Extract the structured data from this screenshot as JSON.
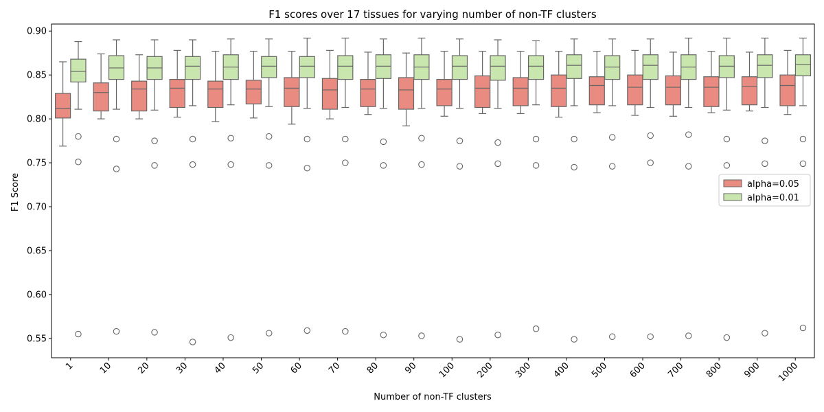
{
  "chart_data": {
    "type": "box",
    "title": "F1 scores over 17 tissues for varying number of non-TF clusters",
    "xlabel": "Number of non-TF clusters",
    "ylabel": "F1 Score",
    "ylim": [
      0.528,
      0.908
    ],
    "yticks": [
      "0.55",
      "0.60",
      "0.65",
      "0.70",
      "0.75",
      "0.80",
      "0.85",
      "0.90"
    ],
    "categories": [
      "1",
      "10",
      "20",
      "30",
      "40",
      "50",
      "60",
      "70",
      "80",
      "90",
      "100",
      "200",
      "300",
      "400",
      "500",
      "600",
      "700",
      "800",
      "900",
      "1000"
    ],
    "legend_position": "center-right",
    "grid": false,
    "series": [
      {
        "name": "alpha=0.05",
        "color": "#e98b80",
        "boxes": [
          {
            "whislo": 0.769,
            "q1": 0.801,
            "med": 0.812,
            "q3": 0.829,
            "whishi": 0.865,
            "fliers": []
          },
          {
            "whislo": 0.8,
            "q1": 0.809,
            "med": 0.83,
            "q3": 0.841,
            "whishi": 0.874,
            "fliers": []
          },
          {
            "whislo": 0.8,
            "q1": 0.809,
            "med": 0.834,
            "q3": 0.843,
            "whishi": 0.873,
            "fliers": []
          },
          {
            "whislo": 0.802,
            "q1": 0.813,
            "med": 0.835,
            "q3": 0.845,
            "whishi": 0.878,
            "fliers": []
          },
          {
            "whislo": 0.797,
            "q1": 0.813,
            "med": 0.834,
            "q3": 0.843,
            "whishi": 0.877,
            "fliers": []
          },
          {
            "whislo": 0.801,
            "q1": 0.817,
            "med": 0.834,
            "q3": 0.844,
            "whishi": 0.877,
            "fliers": []
          },
          {
            "whislo": 0.794,
            "q1": 0.814,
            "med": 0.835,
            "q3": 0.847,
            "whishi": 0.877,
            "fliers": []
          },
          {
            "whislo": 0.8,
            "q1": 0.811,
            "med": 0.833,
            "q3": 0.846,
            "whishi": 0.878,
            "fliers": []
          },
          {
            "whislo": 0.805,
            "q1": 0.814,
            "med": 0.834,
            "q3": 0.845,
            "whishi": 0.876,
            "fliers": []
          },
          {
            "whislo": 0.792,
            "q1": 0.811,
            "med": 0.833,
            "q3": 0.847,
            "whishi": 0.875,
            "fliers": []
          },
          {
            "whislo": 0.803,
            "q1": 0.815,
            "med": 0.834,
            "q3": 0.845,
            "whishi": 0.877,
            "fliers": []
          },
          {
            "whislo": 0.806,
            "q1": 0.813,
            "med": 0.835,
            "q3": 0.849,
            "whishi": 0.877,
            "fliers": []
          },
          {
            "whislo": 0.806,
            "q1": 0.815,
            "med": 0.835,
            "q3": 0.847,
            "whishi": 0.877,
            "fliers": []
          },
          {
            "whislo": 0.802,
            "q1": 0.814,
            "med": 0.835,
            "q3": 0.85,
            "whishi": 0.877,
            "fliers": []
          },
          {
            "whislo": 0.807,
            "q1": 0.816,
            "med": 0.838,
            "q3": 0.848,
            "whishi": 0.877,
            "fliers": []
          },
          {
            "whislo": 0.804,
            "q1": 0.816,
            "med": 0.836,
            "q3": 0.85,
            "whishi": 0.878,
            "fliers": []
          },
          {
            "whislo": 0.803,
            "q1": 0.816,
            "med": 0.836,
            "q3": 0.849,
            "whishi": 0.876,
            "fliers": []
          },
          {
            "whislo": 0.807,
            "q1": 0.814,
            "med": 0.836,
            "q3": 0.848,
            "whishi": 0.877,
            "fliers": []
          },
          {
            "whislo": 0.809,
            "q1": 0.816,
            "med": 0.837,
            "q3": 0.848,
            "whishi": 0.876,
            "fliers": []
          },
          {
            "whislo": 0.805,
            "q1": 0.815,
            "med": 0.838,
            "q3": 0.85,
            "whishi": 0.878,
            "fliers": []
          }
        ]
      },
      {
        "name": "alpha=0.01",
        "color": "#c9e6ae",
        "boxes": [
          {
            "whislo": 0.811,
            "q1": 0.842,
            "med": 0.854,
            "q3": 0.868,
            "whishi": 0.888,
            "fliers": [
              0.78,
              0.751,
              0.555
            ]
          },
          {
            "whislo": 0.811,
            "q1": 0.845,
            "med": 0.858,
            "q3": 0.872,
            "whishi": 0.89,
            "fliers": [
              0.777,
              0.743,
              0.558
            ]
          },
          {
            "whislo": 0.81,
            "q1": 0.845,
            "med": 0.858,
            "q3": 0.871,
            "whishi": 0.89,
            "fliers": [
              0.775,
              0.747,
              0.557
            ]
          },
          {
            "whislo": 0.815,
            "q1": 0.845,
            "med": 0.86,
            "q3": 0.871,
            "whishi": 0.89,
            "fliers": [
              0.777,
              0.748,
              0.546
            ]
          },
          {
            "whislo": 0.816,
            "q1": 0.845,
            "med": 0.859,
            "q3": 0.873,
            "whishi": 0.891,
            "fliers": [
              0.778,
              0.748,
              0.551
            ]
          },
          {
            "whislo": 0.814,
            "q1": 0.847,
            "med": 0.86,
            "q3": 0.871,
            "whishi": 0.891,
            "fliers": [
              0.78,
              0.747,
              0.556
            ]
          },
          {
            "whislo": 0.812,
            "q1": 0.847,
            "med": 0.86,
            "q3": 0.871,
            "whishi": 0.892,
            "fliers": [
              0.777,
              0.744,
              0.559
            ]
          },
          {
            "whislo": 0.813,
            "q1": 0.845,
            "med": 0.86,
            "q3": 0.872,
            "whishi": 0.892,
            "fliers": [
              0.777,
              0.75,
              0.558
            ]
          },
          {
            "whislo": 0.812,
            "q1": 0.846,
            "med": 0.86,
            "q3": 0.873,
            "whishi": 0.891,
            "fliers": [
              0.774,
              0.747,
              0.554
            ]
          },
          {
            "whislo": 0.812,
            "q1": 0.845,
            "med": 0.859,
            "q3": 0.873,
            "whishi": 0.892,
            "fliers": [
              0.778,
              0.748,
              0.553
            ]
          },
          {
            "whislo": 0.812,
            "q1": 0.845,
            "med": 0.86,
            "q3": 0.872,
            "whishi": 0.891,
            "fliers": [
              0.775,
              0.746,
              0.549
            ]
          },
          {
            "whislo": 0.812,
            "q1": 0.844,
            "med": 0.86,
            "q3": 0.872,
            "whishi": 0.89,
            "fliers": [
              0.773,
              0.749,
              0.554
            ]
          },
          {
            "whislo": 0.816,
            "q1": 0.845,
            "med": 0.86,
            "q3": 0.872,
            "whishi": 0.889,
            "fliers": [
              0.777,
              0.747,
              0.561
            ]
          },
          {
            "whislo": 0.815,
            "q1": 0.846,
            "med": 0.861,
            "q3": 0.873,
            "whishi": 0.891,
            "fliers": [
              0.777,
              0.745,
              0.549
            ]
          },
          {
            "whislo": 0.815,
            "q1": 0.845,
            "med": 0.859,
            "q3": 0.872,
            "whishi": 0.891,
            "fliers": [
              0.779,
              0.746,
              0.552
            ]
          },
          {
            "whislo": 0.813,
            "q1": 0.845,
            "med": 0.861,
            "q3": 0.873,
            "whishi": 0.891,
            "fliers": [
              0.781,
              0.75,
              0.552
            ]
          },
          {
            "whislo": 0.813,
            "q1": 0.845,
            "med": 0.859,
            "q3": 0.873,
            "whishi": 0.892,
            "fliers": [
              0.782,
              0.746,
              0.553
            ]
          },
          {
            "whislo": 0.81,
            "q1": 0.847,
            "med": 0.86,
            "q3": 0.872,
            "whishi": 0.892,
            "fliers": [
              0.777,
              0.747,
              0.551
            ]
          },
          {
            "whislo": 0.813,
            "q1": 0.847,
            "med": 0.861,
            "q3": 0.873,
            "whishi": 0.892,
            "fliers": [
              0.775,
              0.749,
              0.556
            ]
          },
          {
            "whislo": 0.815,
            "q1": 0.849,
            "med": 0.862,
            "q3": 0.873,
            "whishi": 0.892,
            "fliers": [
              0.777,
              0.749,
              0.562
            ]
          }
        ]
      }
    ]
  }
}
